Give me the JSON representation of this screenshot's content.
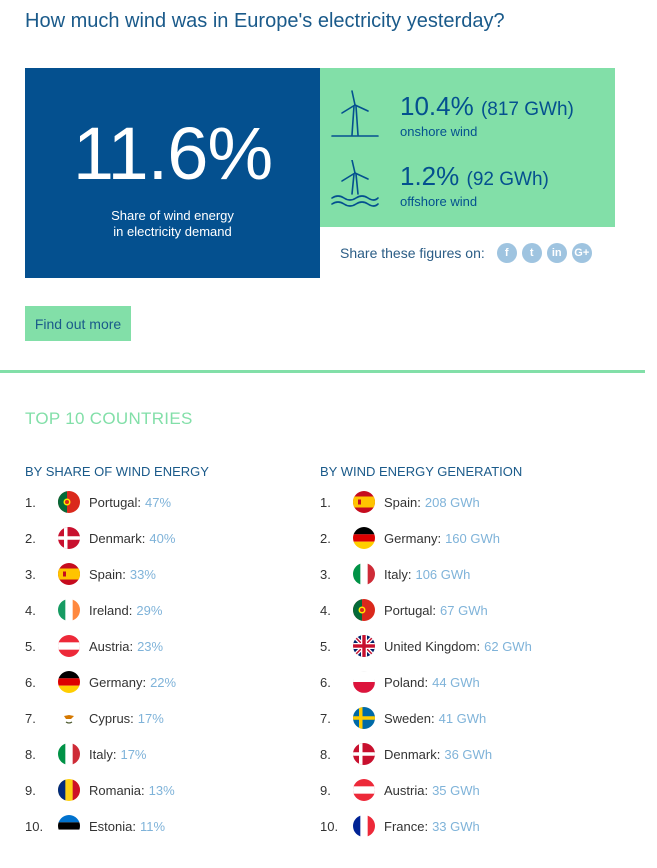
{
  "title": "How much wind was in Europe's electricity yesterday?",
  "headline": {
    "value": "11.6%",
    "caption_line1": "Share of wind energy",
    "caption_line2": "in electricity demand"
  },
  "onshore": {
    "pct": "10.4%",
    "gwh": "(817 GWh)",
    "label": "onshore wind",
    "icon": "wind-turbine-icon"
  },
  "offshore": {
    "pct": "1.2%",
    "gwh": "(92 GWh)",
    "label": "offshore wind",
    "icon": "offshore-wind-turbine-icon"
  },
  "share": {
    "label": "Share these figures on:",
    "icons": [
      {
        "name": "facebook-icon",
        "glyph": "f"
      },
      {
        "name": "twitter-icon",
        "glyph": "t"
      },
      {
        "name": "linkedin-icon",
        "glyph": "in"
      },
      {
        "name": "googleplus-icon",
        "glyph": "G+"
      }
    ]
  },
  "find_more_label": "Find out more",
  "section_title": "TOP 10 COUNTRIES",
  "by_share": {
    "heading": "BY SHARE OF WIND ENERGY",
    "items": [
      {
        "rank": "1.",
        "country": "Portugal:",
        "value": "47%",
        "flag": "pt"
      },
      {
        "rank": "2.",
        "country": "Denmark:",
        "value": "40%",
        "flag": "dk"
      },
      {
        "rank": "3.",
        "country": "Spain:",
        "value": "33%",
        "flag": "es"
      },
      {
        "rank": "4.",
        "country": "Ireland:",
        "value": "29%",
        "flag": "ie"
      },
      {
        "rank": "5.",
        "country": "Austria:",
        "value": "23%",
        "flag": "at"
      },
      {
        "rank": "6.",
        "country": "Germany:",
        "value": "22%",
        "flag": "de"
      },
      {
        "rank": "7.",
        "country": "Cyprus:",
        "value": "17%",
        "flag": "cy"
      },
      {
        "rank": "8.",
        "country": "Italy:",
        "value": "17%",
        "flag": "it"
      },
      {
        "rank": "9.",
        "country": "Romania:",
        "value": "13%",
        "flag": "ro"
      },
      {
        "rank": "10.",
        "country": "Estonia:",
        "value": "11%",
        "flag": "ee"
      }
    ]
  },
  "by_generation": {
    "heading": "BY WIND ENERGY GENERATION",
    "items": [
      {
        "rank": "1.",
        "country": "Spain:",
        "value": "208 GWh",
        "flag": "es"
      },
      {
        "rank": "2.",
        "country": "Germany:",
        "value": "160 GWh",
        "flag": "de"
      },
      {
        "rank": "3.",
        "country": "Italy:",
        "value": "106 GWh",
        "flag": "it"
      },
      {
        "rank": "4.",
        "country": "Portugal:",
        "value": "67 GWh",
        "flag": "pt"
      },
      {
        "rank": "5.",
        "country": "United Kingdom:",
        "value": "62 GWh",
        "flag": "gb"
      },
      {
        "rank": "6.",
        "country": "Poland:",
        "value": "44 GWh",
        "flag": "pl"
      },
      {
        "rank": "7.",
        "country": "Sweden:",
        "value": "41 GWh",
        "flag": "se"
      },
      {
        "rank": "8.",
        "country": "Denmark:",
        "value": "36 GWh",
        "flag": "dk"
      },
      {
        "rank": "9.",
        "country": "Austria:",
        "value": "35 GWh",
        "flag": "at"
      },
      {
        "rank": "10.",
        "country": "France:",
        "value": "33 GWh",
        "flag": "fr"
      }
    ]
  },
  "colors": {
    "blue": "#04508f",
    "green": "#82dfa8",
    "value_blue": "#7fb3d9"
  }
}
